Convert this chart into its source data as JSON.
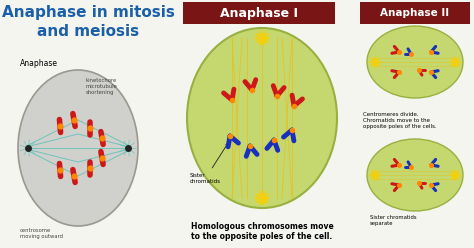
{
  "title": "Anaphase in mitosis\nand meiosis",
  "title_color": "#1a5fa8",
  "bg_color": "#f5f5f0",
  "anaphase1_label": "Anaphase I",
  "anaphase2_label": "Anaphase II",
  "header_bg": "#7a1515",
  "header_text_color": "#ffffff",
  "label_anaphase": "Anaphase",
  "label_kinetochore": "kinetochore\nmicrotubule\nshortening",
  "label_centrosome": "centrosome\nmoving outward",
  "label_sister": "Sister\nchromatids",
  "label_homologous": "Homologous chromosomes move\nto the opposite poles of the cell.",
  "label_centromeres": "Centromeres divide.\nChromatids move to the\nopposite poles of the cells.",
  "label_sister2": "Sister chromatids\nseparate",
  "cell1_color": "#d0d0cc",
  "cell1_edge": "#999990",
  "cell2_color": "#c5d870",
  "cell2_edge": "#98b040",
  "spindle_teal": "#50c0b8",
  "spindle_yellow": "#e8c020",
  "chr_red": "#cc1818",
  "chr_blue": "#1830bb",
  "centromere_color": "#ff8800",
  "yellow_star": "#f0d010",
  "arrow_color": "#333333"
}
